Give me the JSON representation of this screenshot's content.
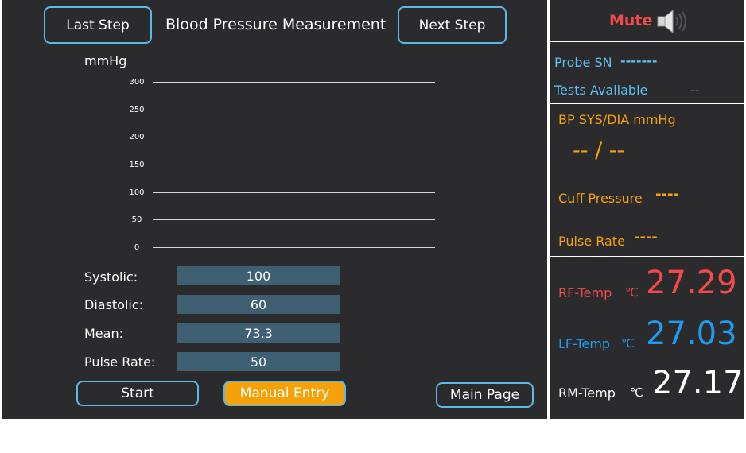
{
  "header": {
    "last_step": "Last Step",
    "title": "Blood Pressure Measurement",
    "next_step": "Next Step"
  },
  "chart": {
    "unit": "mmHg",
    "ticks": [
      "300",
      "250",
      "200",
      "150",
      "100",
      "50",
      "0"
    ]
  },
  "chart_data": {
    "type": "line",
    "ylabel": "mmHg",
    "ylim": [
      0,
      300
    ],
    "yticks": [
      300,
      250,
      200,
      150,
      100,
      50,
      0
    ],
    "series": []
  },
  "fields": {
    "systolic_label": "Systolic:",
    "systolic_value": "100",
    "diastolic_label": "Diastolic:",
    "diastolic_value": "60",
    "mean_label": "Mean:",
    "mean_value": "73.3",
    "pulse_label": "Pulse Rate:",
    "pulse_value": "50"
  },
  "buttons": {
    "start": "Start",
    "manual_entry": "Manual Entry",
    "main_page": "Main Page"
  },
  "side": {
    "mute_label": "Mute",
    "probe_sn_label": "Probe SN",
    "probe_sn_value": "-------",
    "tests_label": "Tests Available",
    "tests_value": "--",
    "bp_label": "BP SYS/DIA  mmHg",
    "bp_value": "-- / --",
    "cuff_label": "Cuff Pressure",
    "cuff_value": "----",
    "pulse_label": "Pulse Rate",
    "pulse_value": "----",
    "rf_label": "RF-Temp",
    "rf_unit": "℃",
    "rf_value": "27.29",
    "lf_label": "LF-Temp",
    "lf_unit": "℃",
    "lf_value": "27.03",
    "rm_label": "RM-Temp",
    "rm_unit": "℃",
    "rm_value": "27.17"
  },
  "colors": {
    "accent_blue": "#5cb8e6",
    "orange": "#f5a20a",
    "red": "#f04a4a",
    "temp_blue": "#1e9cf0"
  }
}
